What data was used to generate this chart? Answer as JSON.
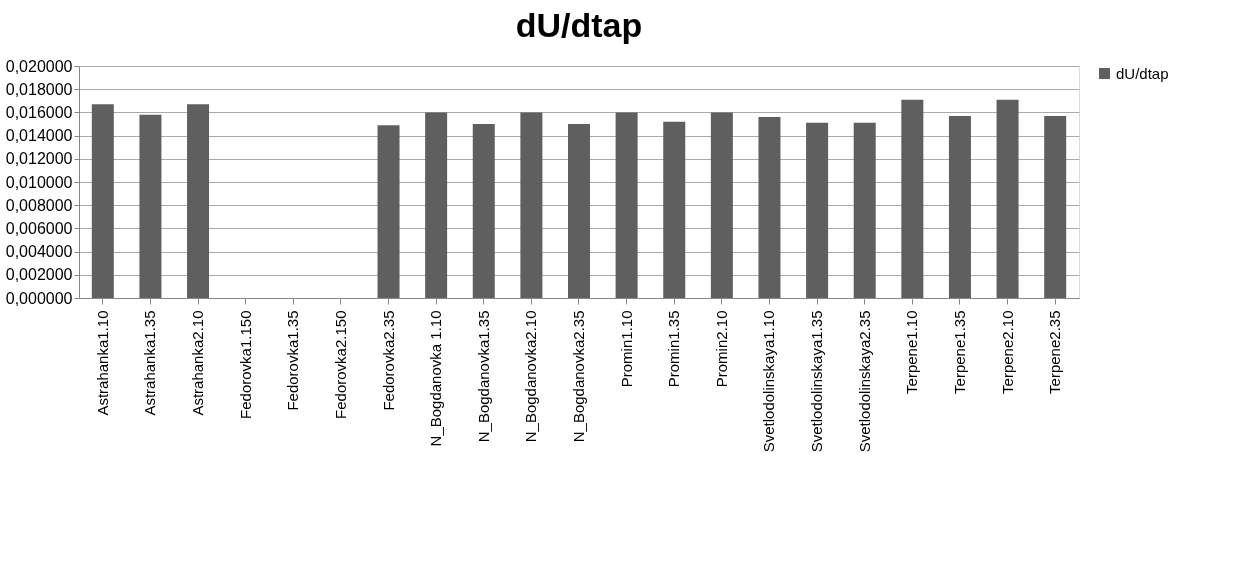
{
  "chart_data": {
    "type": "bar",
    "title": "dU/dtap",
    "categories": [
      "Astrahanka1.10",
      "Astrahanka1.35",
      "Astrahanka2.10",
      "Fedorovka1.150",
      "Fedorovka1.35",
      "Fedorovka2.150",
      "Fedorovka2.35",
      "N_Bogdanovka 1.10",
      "N_Bogdanovka1.35",
      "N_Bogdanovka2.10",
      "N_Bogdanovka2.35",
      "Promin1.10",
      "Promin1.35",
      "Promin2.10",
      "Svetlodolinskaya1.10",
      "Svetlodolinskaya1.35",
      "Svetlodolinskaya2.35",
      "Terpene1.10",
      "Terpene1.35",
      "Terpene2.10",
      "Terpene2.35"
    ],
    "series": [
      {
        "name": "dU/dtap",
        "color": "#5f5f5f",
        "values": [
          0.0167,
          0.0158,
          0.0167,
          null,
          null,
          null,
          0.0149,
          0.016,
          0.015,
          0.016,
          0.015,
          0.016,
          0.0152,
          0.016,
          0.0156,
          0.0151,
          0.0151,
          0.0171,
          0.0157,
          0.0171,
          0.0157
        ]
      }
    ],
    "ylim": [
      0,
      0.02
    ],
    "yticks": [
      {
        "value": 0,
        "label": "0,000000"
      },
      {
        "value": 0.002,
        "label": "0,002000"
      },
      {
        "value": 0.004,
        "label": "0,004000"
      },
      {
        "value": 0.006,
        "label": "0,006000"
      },
      {
        "value": 0.008,
        "label": "0,008000"
      },
      {
        "value": 0.01,
        "label": "0,010000"
      },
      {
        "value": 0.012,
        "label": "0,012000"
      },
      {
        "value": 0.014,
        "label": "0,014000"
      },
      {
        "value": 0.016,
        "label": "0,016000"
      },
      {
        "value": 0.018,
        "label": "0,018000"
      },
      {
        "value": 0.02,
        "label": "0,020000"
      }
    ],
    "grid": "y",
    "legend": "right"
  }
}
